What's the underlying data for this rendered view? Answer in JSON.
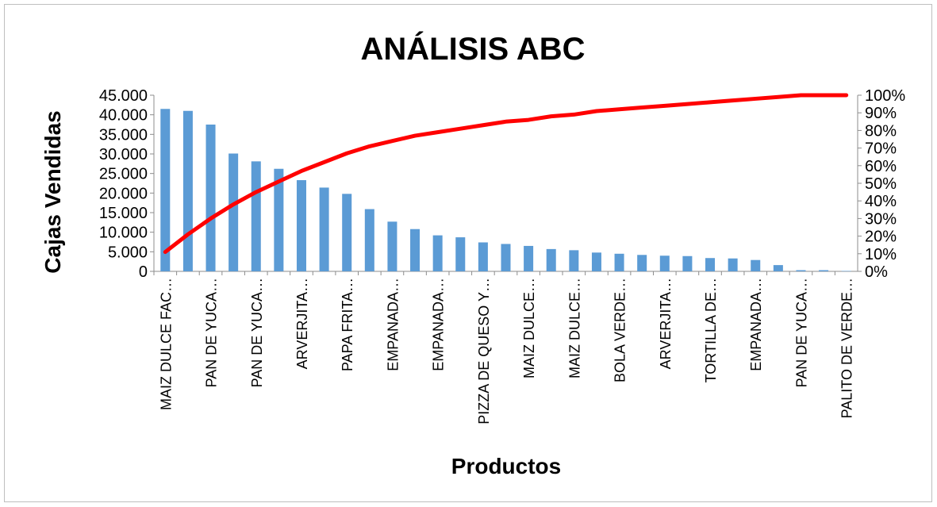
{
  "chart_data": {
    "type": "bar",
    "title": "ANÁLISIS ABC",
    "xlabel": "Productos",
    "ylabel": "Cajas Vendidas",
    "ylim": [
      0,
      45000
    ],
    "y2lim": [
      0,
      1
    ],
    "y_ticks": [
      "0",
      "5.000",
      "10.000",
      "15.000",
      "20.000",
      "25.000",
      "30.000",
      "35.000",
      "40.000",
      "45.000"
    ],
    "y2_ticks": [
      "0%",
      "10%",
      "20%",
      "30%",
      "40%",
      "50%",
      "60%",
      "70%",
      "80%",
      "90%",
      "100%"
    ],
    "categories": [
      "MAIZ DULCE FAC…",
      "",
      "PAN DE YUCA…",
      "",
      "PAN DE YUCA…",
      "",
      "ARVERJITA…",
      "",
      "PAPA FRITA…",
      "",
      "EMPANADA…",
      "",
      "EMPANADA…",
      "",
      "PIZZA DE QUESO Y…",
      "",
      "MAIZ DULCE…",
      "",
      "MAIZ DULCE…",
      "",
      "BOLA VERDE…",
      "",
      "ARVERJITA…",
      "",
      "TORTILLA DE…",
      "",
      "EMPANADA…",
      "",
      "PAN DE YUCA…",
      "",
      "PALITO DE VERDE…"
    ],
    "series": [
      {
        "type": "bar",
        "color": "#5b9bd5",
        "values": [
          41500,
          41000,
          37500,
          30100,
          28100,
          26200,
          23300,
          21400,
          19800,
          15900,
          12700,
          10800,
          9200,
          8700,
          7400,
          7000,
          6500,
          5700,
          5400,
          4800,
          4500,
          4200,
          4000,
          3900,
          3400,
          3300,
          2900,
          1600,
          300,
          300,
          100
        ]
      },
      {
        "type": "line",
        "color": "#ff0000",
        "axis": "right",
        "values": [
          0.11,
          0.21,
          0.3,
          0.38,
          0.45,
          0.51,
          0.57,
          0.62,
          0.67,
          0.71,
          0.74,
          0.77,
          0.79,
          0.81,
          0.83,
          0.85,
          0.86,
          0.88,
          0.89,
          0.91,
          0.92,
          0.93,
          0.94,
          0.95,
          0.96,
          0.97,
          0.98,
          0.99,
          1.0,
          1.0,
          1.0
        ]
      }
    ],
    "grid": false,
    "legend": "none"
  }
}
